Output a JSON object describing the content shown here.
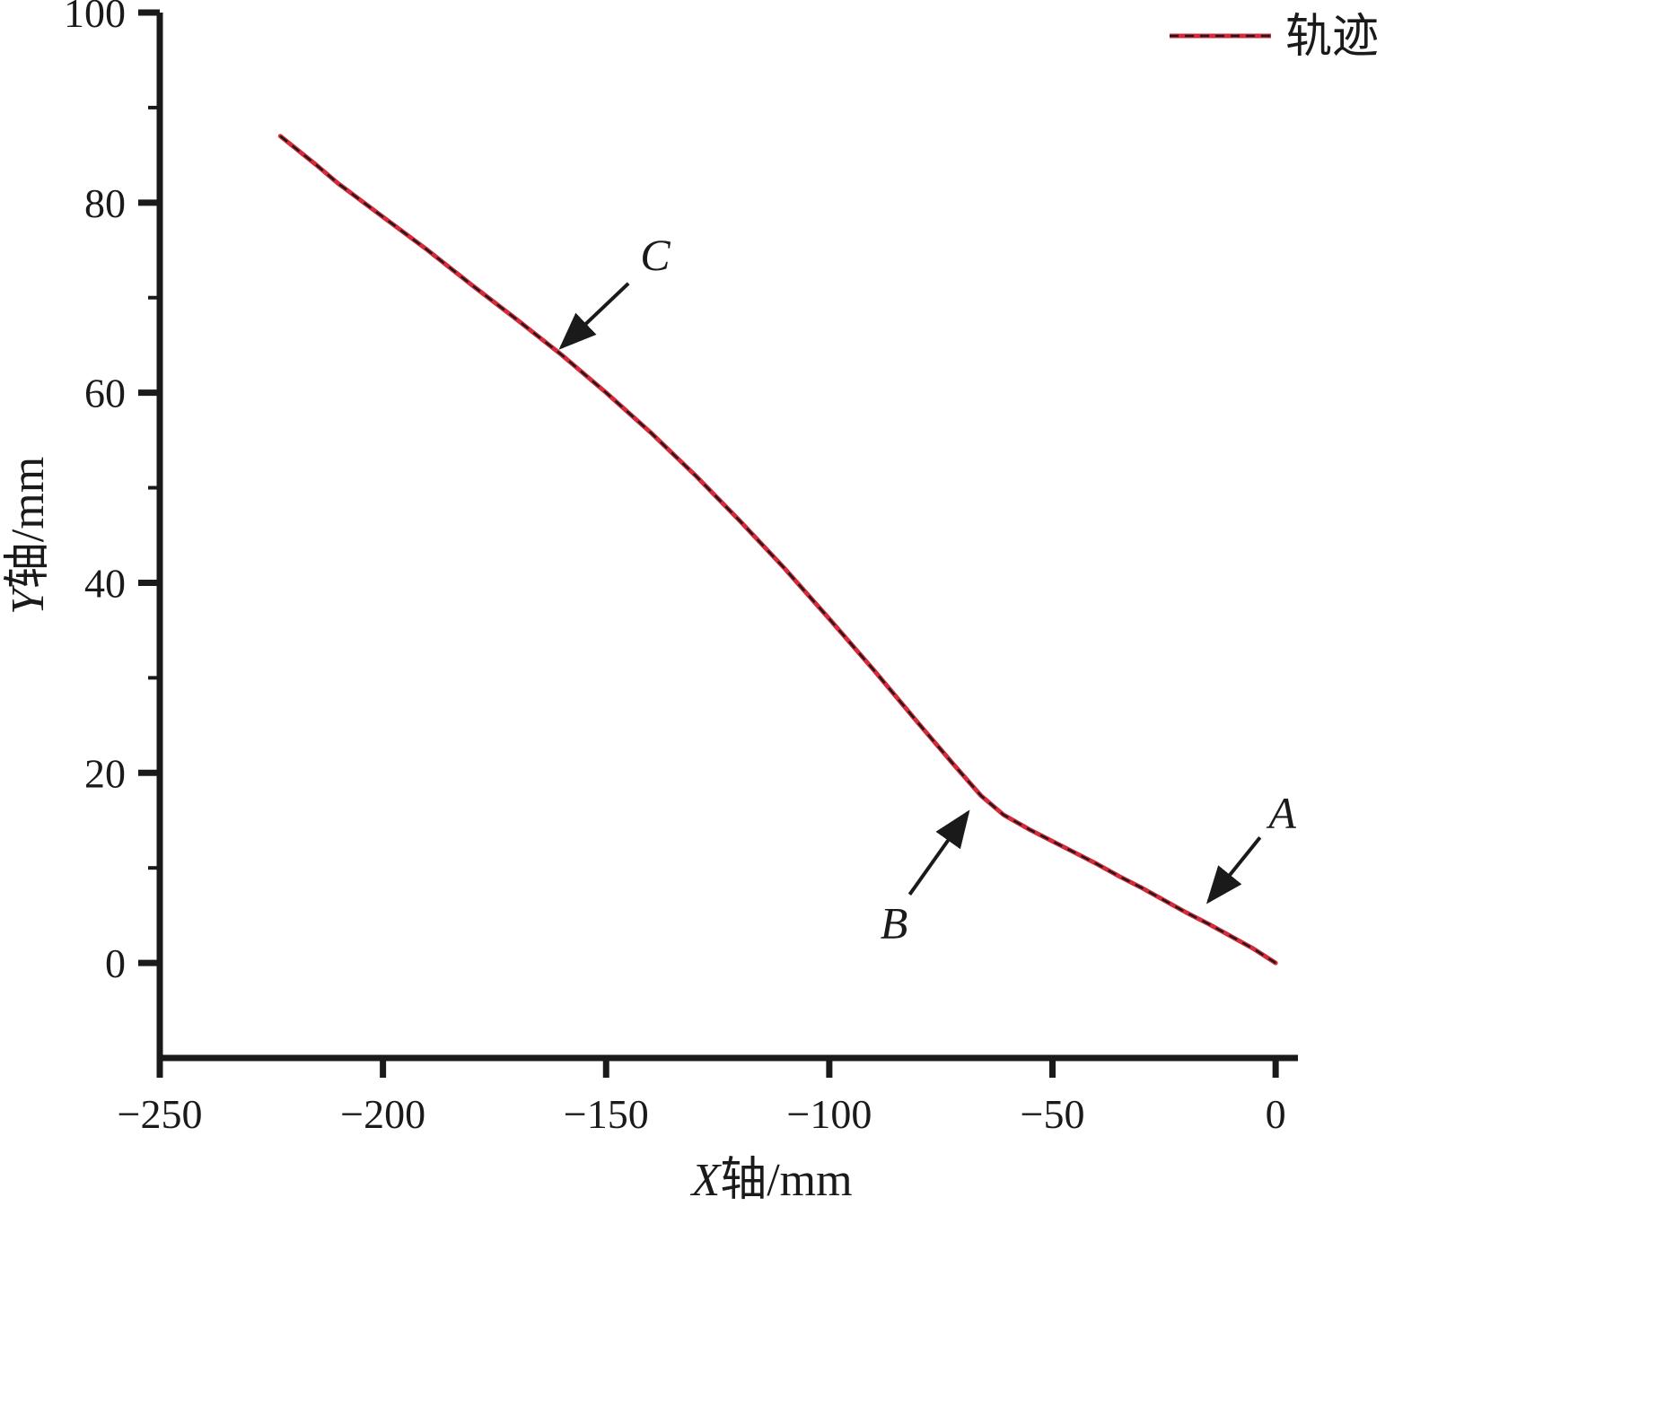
{
  "figure": {
    "background": "#ffffff",
    "text_color": "#1a1a1a"
  },
  "chart_data": {
    "type": "line",
    "title": "",
    "xlabel": "X轴/mm",
    "ylabel": "Y轴/mm",
    "xlim": [
      -250,
      5
    ],
    "ylim": [
      -10,
      100
    ],
    "x_ticks": [
      -250,
      -200,
      -150,
      -100,
      -50,
      0
    ],
    "y_ticks": [
      0,
      20,
      40,
      60,
      80,
      100
    ],
    "y_minor_ticks": [
      10,
      30,
      50,
      70,
      90
    ],
    "grid": false,
    "legend": {
      "position": "top-right",
      "entries": [
        {
          "label": "轨迹",
          "color": "#d42a3a",
          "overlay_color": "#1a1a1a"
        }
      ]
    },
    "series": [
      {
        "name": "轨迹",
        "color": "#d42a3a",
        "overlay_color": "#1a1a1a",
        "overlay_dash": "10 7",
        "points": [
          [
            -223,
            87
          ],
          [
            -215,
            84
          ],
          [
            -210,
            82
          ],
          [
            -200,
            78.5
          ],
          [
            -190,
            75
          ],
          [
            -180,
            71.3
          ],
          [
            -170,
            67.7
          ],
          [
            -160,
            64
          ],
          [
            -150,
            60
          ],
          [
            -140,
            55.8
          ],
          [
            -130,
            51.3
          ],
          [
            -120,
            46.5
          ],
          [
            -110,
            41.5
          ],
          [
            -100,
            36.2
          ],
          [
            -90,
            30.8
          ],
          [
            -80,
            25.2
          ],
          [
            -72,
            20.8
          ],
          [
            -66,
            17.6
          ],
          [
            -61,
            15.6
          ],
          [
            -55,
            14
          ],
          [
            -50,
            12.8
          ],
          [
            -45,
            11.6
          ],
          [
            -40,
            10.4
          ],
          [
            -35,
            9.1
          ],
          [
            -30,
            7.9
          ],
          [
            -25,
            6.6
          ],
          [
            -20,
            5.3
          ],
          [
            -15,
            4.1
          ],
          [
            -10,
            2.8
          ],
          [
            -5,
            1.5
          ],
          [
            0,
            0
          ]
        ]
      }
    ],
    "annotations": [
      {
        "label": "C",
        "label_pos": [
          -139,
          74.5
        ],
        "arrow_from": [
          -145,
          71.5
        ],
        "arrow_to": [
          -160,
          64.8
        ]
      },
      {
        "label": "B",
        "label_pos": [
          -85.5,
          4.2
        ],
        "arrow_from": [
          -82,
          7.2
        ],
        "arrow_to": [
          -69,
          15.8
        ]
      },
      {
        "label": "A",
        "label_pos": [
          1.5,
          15.8
        ],
        "arrow_from": [
          -3.5,
          13.2
        ],
        "arrow_to": [
          -15,
          6.5
        ]
      }
    ]
  }
}
